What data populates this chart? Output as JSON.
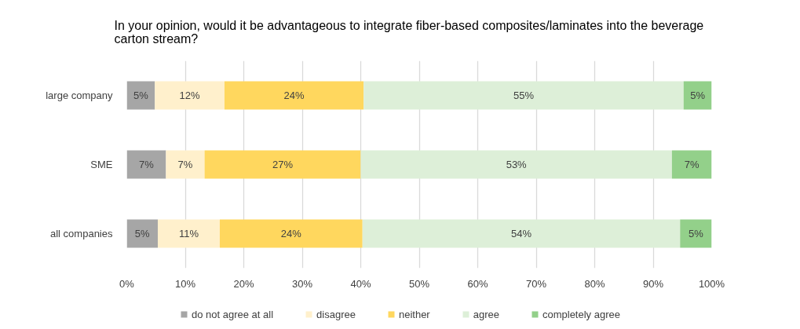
{
  "chart_data": {
    "type": "bar",
    "orientation": "horizontal",
    "stacked": true,
    "title": "In your opinion, would it be advantageous to integrate fiber-based composites/laminates into the beverage carton stream?",
    "categories": [
      "large company",
      "SME",
      "all companies"
    ],
    "series": [
      {
        "name": "do not agree at all",
        "color": "#a6a6a6",
        "values": [
          4.8,
          6.7,
          5.3
        ],
        "value_labels": [
          "5%",
          "7%",
          "5%"
        ]
      },
      {
        "name": "disagree",
        "color": "#fff0cc",
        "values": [
          11.9,
          6.6,
          10.6
        ],
        "value_labels": [
          "12%",
          "7%",
          "11%"
        ]
      },
      {
        "name": "neither",
        "color": "#ffd75e",
        "values": [
          23.8,
          26.7,
          24.4
        ],
        "value_labels": [
          "24%",
          "27%",
          "24%"
        ]
      },
      {
        "name": "agree",
        "color": "#ddefd8",
        "values": [
          54.7,
          53.2,
          54.3
        ],
        "value_labels": [
          "55%",
          "53%",
          "54%"
        ]
      },
      {
        "name": "completely agree",
        "color": "#93d08a",
        "values": [
          4.8,
          6.8,
          5.4
        ],
        "value_labels": [
          "5%",
          "7%",
          "5%"
        ]
      }
    ],
    "xlim": [
      0,
      100
    ],
    "xticks": [
      {
        "value": 0,
        "label": "0%"
      },
      {
        "value": 10,
        "label": "10%"
      },
      {
        "value": 20,
        "label": "20%"
      },
      {
        "value": 30,
        "label": "30%"
      },
      {
        "value": 40,
        "label": "40%"
      },
      {
        "value": 50,
        "label": "50%"
      },
      {
        "value": 60,
        "label": "60%"
      },
      {
        "value": 70,
        "label": "70%"
      },
      {
        "value": 80,
        "label": "80%"
      },
      {
        "value": 90,
        "label": "90%"
      },
      {
        "value": 100,
        "label": "100%"
      }
    ],
    "grid": "x",
    "legend": "bottom"
  }
}
